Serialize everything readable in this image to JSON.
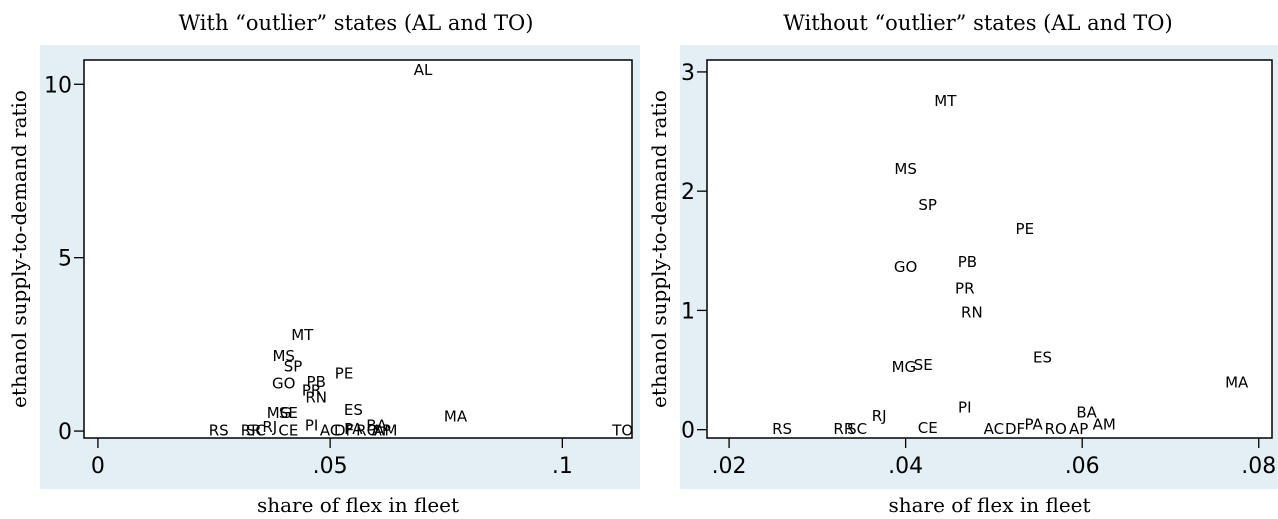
{
  "chart_data": [
    {
      "type": "scatter",
      "title": "With “outlier” states (AL and TO)",
      "xlabel": "share of flex in fleet",
      "ylabel": "ethanol supply-to-demand ratio",
      "xlim": [
        -0.003,
        0.115
      ],
      "ylim": [
        -0.2,
        10.7
      ],
      "xticks": [
        0,
        0.05,
        0.1
      ],
      "xtick_labels": [
        "0",
        ".05",
        ".1"
      ],
      "yticks": [
        0,
        5,
        10
      ],
      "ytick_labels": [
        "0",
        "5",
        "10"
      ],
      "grid": false,
      "points": [
        {
          "label": "AL",
          "x": 0.07,
          "y": 10.4
        },
        {
          "label": "MT",
          "x": 0.044,
          "y": 2.75
        },
        {
          "label": "MS",
          "x": 0.04,
          "y": 2.15
        },
        {
          "label": "SP",
          "x": 0.042,
          "y": 1.85
        },
        {
          "label": "PE",
          "x": 0.053,
          "y": 1.65
        },
        {
          "label": "GO",
          "x": 0.04,
          "y": 1.35
        },
        {
          "label": "PB",
          "x": 0.047,
          "y": 1.4
        },
        {
          "label": "PR",
          "x": 0.046,
          "y": 1.15
        },
        {
          "label": "RN",
          "x": 0.047,
          "y": 0.95
        },
        {
          "label": "ES",
          "x": 0.055,
          "y": 0.6
        },
        {
          "label": "MG",
          "x": 0.039,
          "y": 0.5
        },
        {
          "label": "SE",
          "x": 0.041,
          "y": 0.5
        },
        {
          "label": "MA",
          "x": 0.077,
          "y": 0.4
        },
        {
          "label": "PI",
          "x": 0.046,
          "y": 0.15
        },
        {
          "label": "RJ",
          "x": 0.037,
          "y": 0.1
        },
        {
          "label": "BA",
          "x": 0.06,
          "y": 0.15
        },
        {
          "label": "AM",
          "x": 0.062,
          "y": 0.0
        },
        {
          "label": "PA",
          "x": 0.055,
          "y": 0.05
        },
        {
          "label": "RO",
          "x": 0.058,
          "y": 0.0
        },
        {
          "label": "AP",
          "x": 0.061,
          "y": 0.0
        },
        {
          "label": "AC",
          "x": 0.05,
          "y": 0.0
        },
        {
          "label": "DF",
          "x": 0.053,
          "y": 0.0
        },
        {
          "label": "CE",
          "x": 0.041,
          "y": 0.0
        },
        {
          "label": "RS",
          "x": 0.026,
          "y": 0.0
        },
        {
          "label": "RR",
          "x": 0.033,
          "y": 0.0
        },
        {
          "label": "SC",
          "x": 0.034,
          "y": 0.0
        },
        {
          "label": "TO",
          "x": 0.113,
          "y": 0.0
        }
      ]
    },
    {
      "type": "scatter",
      "title": "Without “outlier” states (AL and TO)",
      "xlabel": "share of flex in fleet",
      "ylabel": "ethanol supply-to-demand ratio",
      "xlim": [
        0.0175,
        0.0815
      ],
      "ylim": [
        -0.07,
        3.1
      ],
      "xticks": [
        0.02,
        0.04,
        0.06,
        0.08
      ],
      "xtick_labels": [
        ".02",
        ".04",
        ".06",
        ".08"
      ],
      "yticks": [
        0,
        1,
        2,
        3
      ],
      "ytick_labels": [
        "0",
        "1",
        "2",
        "3"
      ],
      "grid": false,
      "points": [
        {
          "label": "MT",
          "x": 0.0445,
          "y": 2.75
        },
        {
          "label": "MS",
          "x": 0.04,
          "y": 2.18
        },
        {
          "label": "SP",
          "x": 0.0425,
          "y": 1.88
        },
        {
          "label": "PE",
          "x": 0.0535,
          "y": 1.68
        },
        {
          "label": "GO",
          "x": 0.04,
          "y": 1.36
        },
        {
          "label": "PB",
          "x": 0.047,
          "y": 1.4
        },
        {
          "label": "PR",
          "x": 0.0467,
          "y": 1.18
        },
        {
          "label": "RN",
          "x": 0.0475,
          "y": 0.98
        },
        {
          "label": "ES",
          "x": 0.0555,
          "y": 0.6
        },
        {
          "label": "MG",
          "x": 0.0398,
          "y": 0.52
        },
        {
          "label": "SE",
          "x": 0.042,
          "y": 0.54
        },
        {
          "label": "MA",
          "x": 0.0775,
          "y": 0.39
        },
        {
          "label": "PI",
          "x": 0.0467,
          "y": 0.18
        },
        {
          "label": "RJ",
          "x": 0.037,
          "y": 0.11
        },
        {
          "label": "BA",
          "x": 0.0605,
          "y": 0.14
        },
        {
          "label": "AM",
          "x": 0.0625,
          "y": 0.04
        },
        {
          "label": "PA",
          "x": 0.0545,
          "y": 0.04
        },
        {
          "label": "RO",
          "x": 0.057,
          "y": 0.0
        },
        {
          "label": "AP",
          "x": 0.0596,
          "y": 0.0
        },
        {
          "label": "AC",
          "x": 0.05,
          "y": 0.0
        },
        {
          "label": "DF",
          "x": 0.0524,
          "y": 0.0
        },
        {
          "label": "CE",
          "x": 0.0425,
          "y": 0.01
        },
        {
          "label": "RS",
          "x": 0.026,
          "y": 0.0
        },
        {
          "label": "RR",
          "x": 0.033,
          "y": 0.0
        },
        {
          "label": "SC",
          "x": 0.0345,
          "y": 0.0
        }
      ]
    }
  ],
  "colors": {
    "background": "#ffffff",
    "frame": "#e3eef5",
    "plot": "#ffffff",
    "ink": "#000000"
  }
}
